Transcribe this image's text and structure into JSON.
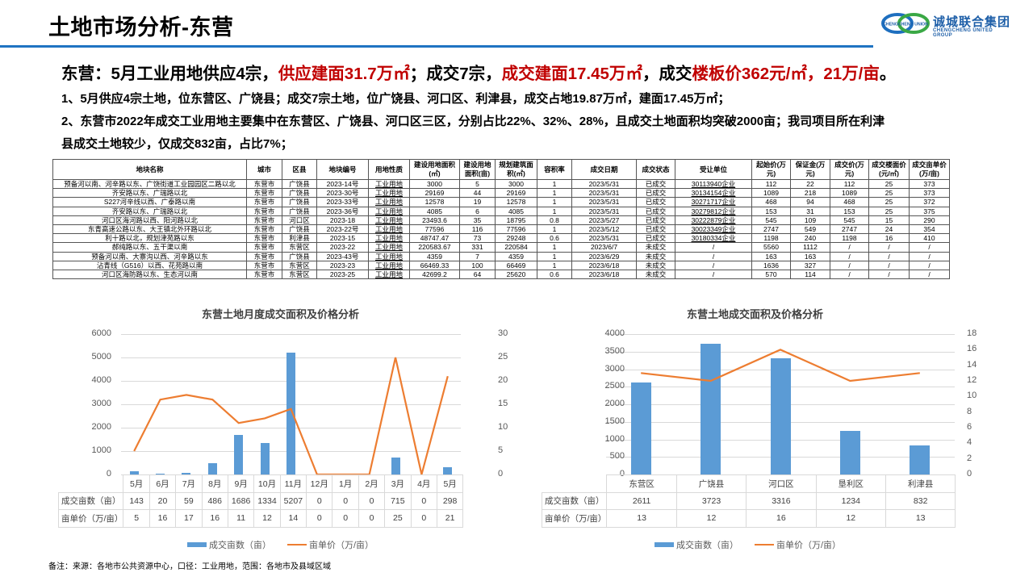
{
  "header": {
    "title": "土地市场分析-东营",
    "logo_cn": "诚城联合集团",
    "logo_en": "CHENGCHENG UNITED GROUP",
    "logo_mark_text": "CHENGCHENG UNION"
  },
  "headline": {
    "p1": "东营：5月工业用地供应4宗，",
    "p2": "供应建面31.7万㎡",
    "p3": "；成交7宗，",
    "p4": "成交建面17.45万㎡",
    "p5": "，成交",
    "p6": "楼板价362元/㎡，21万/亩",
    "p7": "。"
  },
  "paragraphs": [
    "1、5月供应4宗土地，位东营区、广饶县；成交7宗土地，位广饶县、河口区、利津县，成交占地19.87万㎡，建面17.45万㎡；",
    "2、东营市2022年成交工业用地主要集中在东营区、广饶县、河口区三区，分别占比22%、32%、28%，且成交土地面积均突破2000亩；我司项目所在利津",
    "县成交土地较少，仅成交832亩，占比7%；"
  ],
  "land_table": {
    "headers": [
      "地块名称",
      "城市",
      "区县",
      "地块编号",
      "用地性质",
      "建设用地面积(㎡)",
      "建设用地面积(亩)",
      "规划建筑面积(㎡)",
      "容积率",
      "成交日期",
      "成交状态",
      "受让单位",
      "起始价(万元)",
      "保证金(万元)",
      "成交价(万元)",
      "成交楼面价(元/㎡)",
      "成交亩单价(万/亩)"
    ],
    "rows": [
      [
        "预备河以南、河辛路以东、广饶街道工业园园区二路以北",
        "东营市",
        "广饶县",
        "2023-14号",
        "工业用地",
        "3000",
        "5",
        "3000",
        "1",
        "2023/5/31",
        "已成交",
        "30113940企业",
        "112",
        "22",
        "112",
        "25",
        "373"
      ],
      [
        "齐安路以东、广瑞路以北",
        "东营市",
        "广饶县",
        "2023-30号",
        "工业用地",
        "29169",
        "44",
        "29169",
        "1",
        "2023/5/31",
        "已成交",
        "30134154企业",
        "1089",
        "218",
        "1089",
        "25",
        "373"
      ],
      [
        "S227河辛线以西、广泰路以南",
        "东营市",
        "广饶县",
        "2023-33号",
        "工业用地",
        "12578",
        "19",
        "12578",
        "1",
        "2023/5/31",
        "已成交",
        "30271717企业",
        "468",
        "94",
        "468",
        "25",
        "372"
      ],
      [
        "齐安路以东、广瑞路以北",
        "东营市",
        "广饶县",
        "2023-36号",
        "工业用地",
        "4085",
        "6",
        "4085",
        "1",
        "2023/5/31",
        "已成交",
        "30279812企业",
        "153",
        "31",
        "153",
        "25",
        "375"
      ],
      [
        "河口区海河路以西、阳河路以北",
        "东营市",
        "河口区",
        "2023-18",
        "工业用地",
        "23493.6",
        "35",
        "18795",
        "0.8",
        "2023/5/27",
        "已成交",
        "30222879企业",
        "545",
        "109",
        "545",
        "15",
        "290"
      ],
      [
        "东青高速公路以东、大王镇北外环路以北",
        "东营市",
        "广饶县",
        "2023-22号",
        "工业用地",
        "77596",
        "116",
        "77596",
        "1",
        "2023/5/12",
        "已成交",
        "30023349企业",
        "2747",
        "549",
        "2747",
        "24",
        "354"
      ],
      [
        "利十路以北，规划津苑路以东",
        "东营市",
        "利津县",
        "2023-15",
        "工业用地",
        "48747.47",
        "73",
        "29248",
        "0.6",
        "2023/5/31",
        "已成交",
        "30180334企业",
        "1198",
        "240",
        "1198",
        "16",
        "410"
      ],
      [
        "郝纯路以东、五干渠以南",
        "东营市",
        "东营区",
        "2023-22",
        "工业用地",
        "220583.67",
        "331",
        "220584",
        "1",
        "2023/6/7",
        "未成交",
        "/",
        "5560",
        "1112",
        "/",
        "/",
        "/"
      ],
      [
        "预备河以南、大寨沟以西、河辛路以东",
        "东营市",
        "广饶县",
        "2023-43号",
        "工业用地",
        "4359",
        "7",
        "4359",
        "1",
        "2023/6/29",
        "未成交",
        "/",
        "163",
        "163",
        "/",
        "/",
        "/"
      ],
      [
        "沾青线（G516）以西、花苑路以南",
        "东营市",
        "东营区",
        "2023-23",
        "工业用地",
        "66469.33",
        "100",
        "66469",
        "1",
        "2023/6/18",
        "未成交",
        "/",
        "1636",
        "327",
        "/",
        "/",
        "/"
      ],
      [
        "河口区海防路以东、生态河以南",
        "东营市",
        "东营区",
        "2023-25",
        "工业用地",
        "42699.2",
        "64",
        "25620",
        "0.6",
        "2023/6/18",
        "未成交",
        "/",
        "570",
        "114",
        "/",
        "/",
        "/"
      ]
    ]
  },
  "chart_data": [
    {
      "type": "bar+line",
      "title": "东营土地月度成交面积及价格分析",
      "categories": [
        "5月",
        "6月",
        "7月",
        "8月",
        "9月",
        "10月",
        "11月",
        "12月",
        "1月",
        "2月",
        "3月",
        "4月",
        "5月"
      ],
      "series": [
        {
          "name": "成交亩数（亩）",
          "type": "bar",
          "axis": "left",
          "color": "#5b9bd5",
          "values": [
            143,
            20,
            59,
            486,
            1686,
            1334,
            5207,
            0,
            0,
            0,
            715,
            0,
            298
          ]
        },
        {
          "name": "亩单价（万/亩）",
          "type": "line",
          "axis": "right",
          "color": "#ed7d31",
          "values": [
            5,
            16,
            17,
            16,
            11,
            12,
            14,
            0,
            0,
            0,
            25,
            0,
            21
          ]
        }
      ],
      "y_left": {
        "ticks": [
          "6000",
          "5000",
          "4000",
          "3000",
          "2000",
          "1000",
          "0"
        ],
        "range": [
          0,
          6000
        ]
      },
      "y_right": {
        "ticks": [
          "30",
          "25",
          "20",
          "15",
          "10",
          "5",
          "0"
        ],
        "range": [
          0,
          30
        ]
      },
      "grid": true,
      "legend_position": "bottom",
      "data_table": true
    },
    {
      "type": "bar+line",
      "title": "东营土地成交面积及价格分析",
      "categories": [
        "东营区",
        "广饶县",
        "河口区",
        "垦利区",
        "利津县"
      ],
      "series": [
        {
          "name": "成交亩数（亩）",
          "type": "bar",
          "axis": "left",
          "color": "#5b9bd5",
          "values": [
            2611,
            3723,
            3316,
            1234,
            832
          ]
        },
        {
          "name": "亩单价（万/亩）",
          "type": "line",
          "axis": "right",
          "color": "#ed7d31",
          "values": [
            13,
            12,
            16,
            12,
            13
          ]
        }
      ],
      "y_left": {
        "ticks": [
          "4000",
          "3500",
          "3000",
          "2500",
          "2000",
          "1500",
          "1000",
          "500",
          "0"
        ],
        "range": [
          0,
          4000
        ]
      },
      "y_right": {
        "ticks": [
          "18",
          "16",
          "14",
          "12",
          "10",
          "8",
          "6",
          "4",
          "2",
          "0"
        ],
        "range": [
          0,
          18
        ]
      },
      "grid": true,
      "legend_position": "bottom",
      "data_table": true
    }
  ],
  "legend": {
    "bar_label": "成交亩数（亩）",
    "line_label": "亩单价（万/亩）"
  },
  "row_labels": {
    "area": "成交亩数（亩）",
    "price": "亩单价（万/亩）"
  },
  "note": "备注：来源：各地市公共资源中心，口径：工业用地，范围：各地市及县域区域"
}
